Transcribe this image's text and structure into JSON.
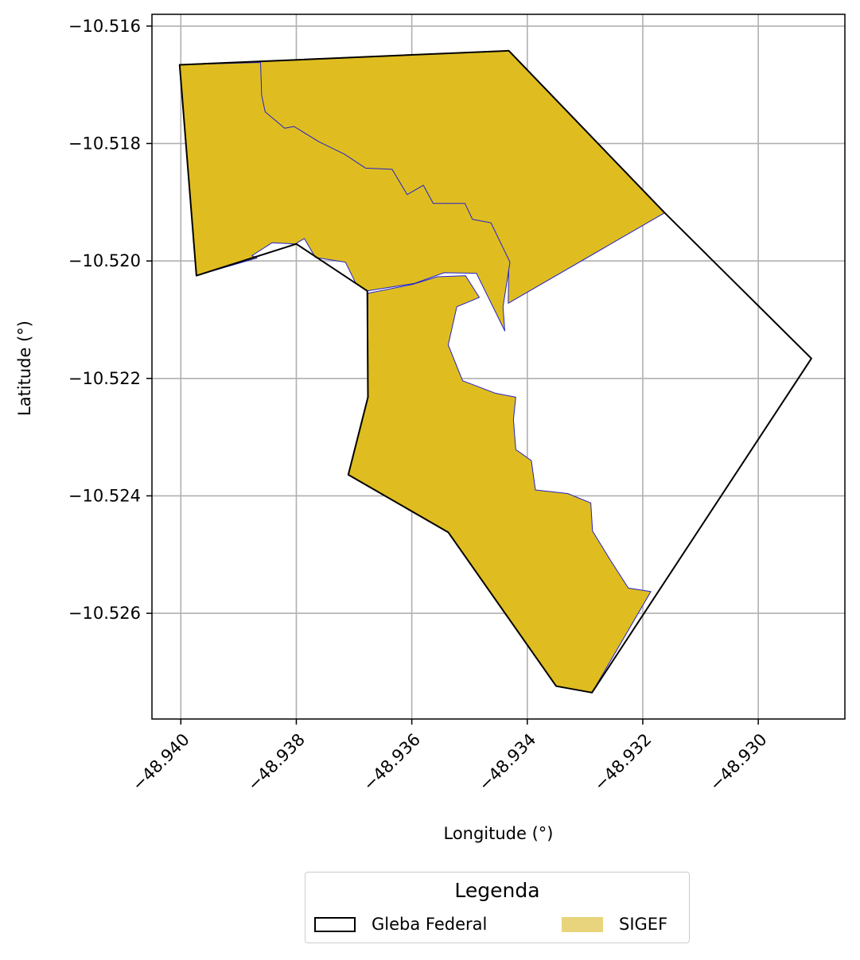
{
  "chart_data": {
    "type": "map",
    "xlabel": "Longitude (°)",
    "ylabel": "Latitude (°)",
    "xlim": [
      -48.9405,
      -48.9285
    ],
    "ylim": [
      -10.5278,
      -10.5158
    ],
    "xticks": [
      -48.94,
      -48.938,
      -48.936,
      -48.934,
      -48.932,
      -48.93
    ],
    "yticks": [
      -10.516,
      -10.518,
      -10.52,
      -10.522,
      -10.524,
      -10.526
    ],
    "xtick_labels": [
      "−48.940",
      "−48.938",
      "−48.936",
      "−48.934",
      "−48.932",
      "−48.930"
    ],
    "ytick_labels": [
      "−10.516",
      "−10.518",
      "−10.520",
      "−10.522",
      "−10.524",
      "−10.526"
    ],
    "grid": true,
    "layers": [
      {
        "name": "Gleba Federal",
        "fill": "none",
        "stroke": "#000000",
        "polygon": [
          [
            -48.94002,
            -10.51666
          ],
          [
            -48.93432,
            -10.51642
          ],
          [
            -48.93162,
            -10.51918
          ],
          [
            -48.92908,
            -10.52166
          ],
          [
            -48.93288,
            -10.52735
          ],
          [
            -48.9335,
            -10.52724
          ],
          [
            -48.93537,
            -10.52462
          ],
          [
            -48.9371,
            -10.52364
          ],
          [
            -48.93676,
            -10.52232
          ],
          [
            -48.93677,
            -10.52051
          ],
          [
            -48.938,
            -10.51971
          ],
          [
            -48.93973,
            -10.52025
          ]
        ]
      },
      {
        "name": "SIGEF",
        "fill": "#dfbd20",
        "stroke": "#2222cc",
        "polygons": [
          [
            [
              -48.94002,
              -10.51666
            ],
            [
              -48.93912,
              -10.51664
            ],
            [
              -48.93914,
              -10.51682
            ],
            [
              -48.93887,
              -10.51706
            ],
            [
              -48.93889,
              -10.51763
            ],
            [
              -48.93876,
              -10.51829
            ],
            [
              -48.9385,
              -10.51832
            ],
            [
              -48.93841,
              -10.51802
            ],
            [
              -48.93795,
              -10.51828
            ],
            [
              -48.93753,
              -10.51845
            ],
            [
              -48.93716,
              -10.5187
            ],
            [
              -48.93679,
              -10.51885
            ],
            [
              -48.93631,
              -10.51883
            ],
            [
              -48.93606,
              -10.51927
            ],
            [
              -48.93579,
              -10.5192
            ],
            [
              -48.93558,
              -10.51941
            ],
            [
              -48.93498,
              -10.5193
            ],
            [
              -48.93485,
              -10.51959
            ],
            [
              -48.93456,
              -10.51959
            ],
            [
              -48.93432,
              -10.52001
            ],
            [
              -48.93433,
              -10.52072
            ],
            [
              -48.93162,
              -10.51918
            ],
            [
              -48.93432,
              -10.51642
            ]
          ],
          [
            [
              -48.94002,
              -10.51666
            ],
            [
              -48.93973,
              -10.52025
            ],
            [
              -48.93868,
              -10.51995
            ],
            [
              -48.93877,
              -10.51991
            ],
            [
              -48.93842,
              -10.51969
            ],
            [
              -48.93802,
              -10.51971
            ],
            [
              -48.93786,
              -10.51962
            ],
            [
              -48.93767,
              -10.51994
            ],
            [
              -48.93715,
              -10.52002
            ],
            [
              -48.93697,
              -10.52038
            ],
            [
              -48.93677,
              -10.52051
            ],
            [
              -48.93595,
              -10.52038
            ],
            [
              -48.93544,
              -10.5202
            ],
            [
              -48.93488,
              -10.52021
            ],
            [
              -48.93439,
              -10.52119
            ],
            [
              -48.93442,
              -10.52078
            ],
            [
              -48.9343,
              -10.52002
            ],
            [
              -48.93463,
              -10.51935
            ],
            [
              -48.93495,
              -10.51929
            ],
            [
              -48.93508,
              -10.51902
            ],
            [
              -48.93563,
              -10.51902
            ],
            [
              -48.9358,
              -10.51871
            ],
            [
              -48.93608,
              -10.51887
            ],
            [
              -48.93634,
              -10.51844
            ],
            [
              -48.9368,
              -10.51842
            ],
            [
              -48.93717,
              -10.51818
            ],
            [
              -48.93761,
              -10.51797
            ],
            [
              -48.93804,
              -10.51771
            ],
            [
              -48.9382,
              -10.51774
            ],
            [
              -48.93854,
              -10.51746
            ],
            [
              -48.9386,
              -10.51718
            ],
            [
              -48.93862,
              -10.51662
            ]
          ],
          [
            [
              -48.93676,
              -10.52055
            ],
            [
              -48.93599,
              -10.5204
            ],
            [
              -48.93556,
              -10.52027
            ],
            [
              -48.93507,
              -10.52025
            ],
            [
              -48.93483,
              -10.52062
            ],
            [
              -48.93522,
              -10.52078
            ],
            [
              -48.93537,
              -10.52143
            ],
            [
              -48.93512,
              -10.52204
            ],
            [
              -48.93456,
              -10.52225
            ],
            [
              -48.9342,
              -10.52232
            ],
            [
              -48.93424,
              -10.5227
            ],
            [
              -48.9342,
              -10.52321
            ],
            [
              -48.93393,
              -10.5234
            ],
            [
              -48.93386,
              -10.5239
            ],
            [
              -48.9333,
              -10.52396
            ],
            [
              -48.9329,
              -10.52412
            ],
            [
              -48.93287,
              -10.5246
            ],
            [
              -48.93257,
              -10.52508
            ],
            [
              -48.93225,
              -10.52557
            ],
            [
              -48.93186,
              -10.52563
            ],
            [
              -48.93288,
              -10.52735
            ],
            [
              -48.9335,
              -10.52724
            ],
            [
              -48.93537,
              -10.52462
            ],
            [
              -48.9371,
              -10.52364
            ],
            [
              -48.93676,
              -10.52232
            ]
          ]
        ]
      }
    ],
    "legend": {
      "title": "Legenda",
      "placement": "bottom-center",
      "entries": [
        {
          "label": "Gleba Federal",
          "fill": "#ffffff",
          "stroke": "#000000"
        },
        {
          "label": "SIGEF",
          "fill": "#e8d47c",
          "stroke": "none"
        }
      ]
    }
  }
}
